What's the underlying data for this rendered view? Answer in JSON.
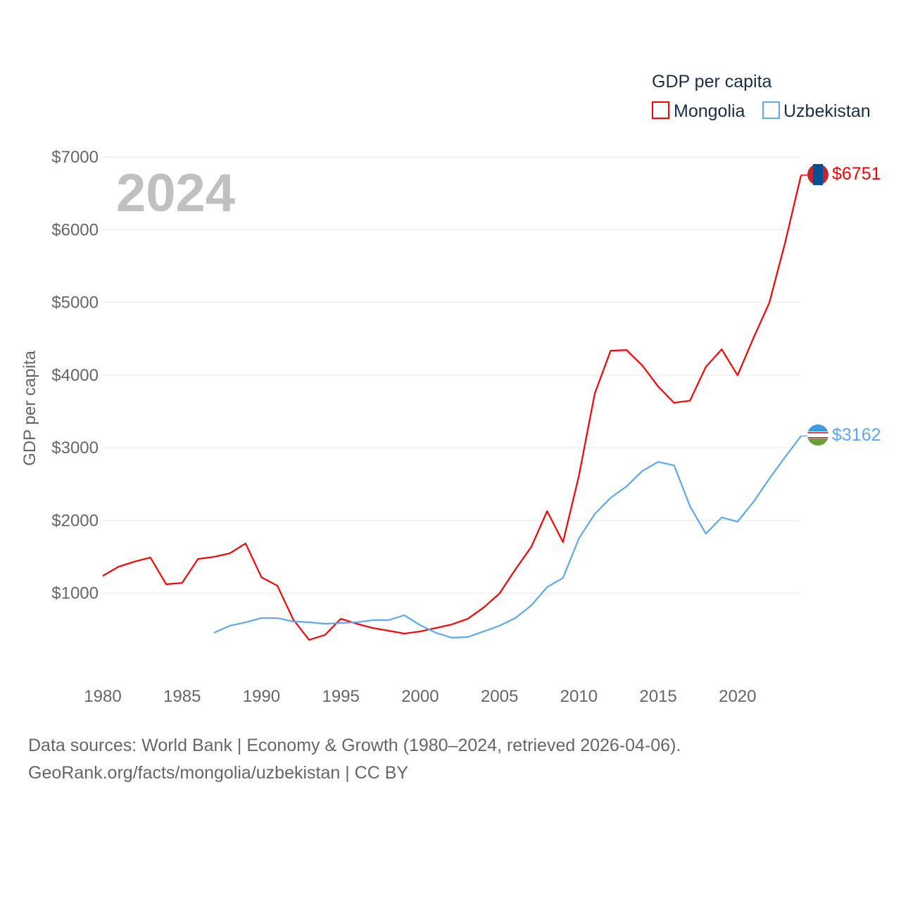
{
  "chart_data": {
    "type": "line",
    "title": "GDP per capita",
    "ylabel": "GDP per capita",
    "xlabel": "",
    "year_label": "2024",
    "xlim": [
      1980,
      2024
    ],
    "ylim": [
      0,
      7000
    ],
    "x_ticks": [
      1980,
      1985,
      1990,
      1995,
      2000,
      2005,
      2010,
      2015,
      2020
    ],
    "y_ticks": [
      1000,
      2000,
      3000,
      4000,
      5000,
      6000,
      7000
    ],
    "y_tick_labels": [
      "$1000",
      "$2000",
      "$3000",
      "$4000",
      "$5000",
      "$6000",
      "$7000"
    ],
    "legend_placement": "top-right",
    "series": [
      {
        "name": "Mongolia",
        "color": "#ff0000",
        "end_label": "$6751",
        "start_year": 1980,
        "values": [
          1239,
          1365,
          1435,
          1490,
          1123,
          1142,
          1471,
          1500,
          1548,
          1684,
          1219,
          1103,
          639,
          358,
          426,
          648,
          580,
          522,
          484,
          445,
          474,
          522,
          571,
          648,
          803,
          997,
          1326,
          1636,
          2129,
          1703,
          2613,
          3745,
          4335,
          4345,
          4132,
          3842,
          3619,
          3648,
          4113,
          4355,
          3997,
          4510,
          4994,
          5826,
          6751
        ]
      },
      {
        "name": "Uzbekistan",
        "color": "#5ba8f0",
        "end_label": "$3162",
        "start_year": 1987,
        "values": [
          455,
          552,
          600,
          658,
          658,
          610,
          600,
          580,
          590,
          600,
          629,
          629,
          697,
          561,
          455,
          387,
          397,
          474,
          552,
          658,
          832,
          1084,
          1210,
          1752,
          2090,
          2313,
          2468,
          2681,
          2806,
          2758,
          2197,
          1819,
          2042,
          1984,
          2255,
          2574,
          2874,
          3162
        ]
      }
    ]
  },
  "footer": {
    "line1": "Data sources: World Bank | Economy & Growth (1980–2024, retrieved 2026-04-06).",
    "line2": "GeoRank.org/facts/mongolia/uzbekistan | CC BY"
  }
}
